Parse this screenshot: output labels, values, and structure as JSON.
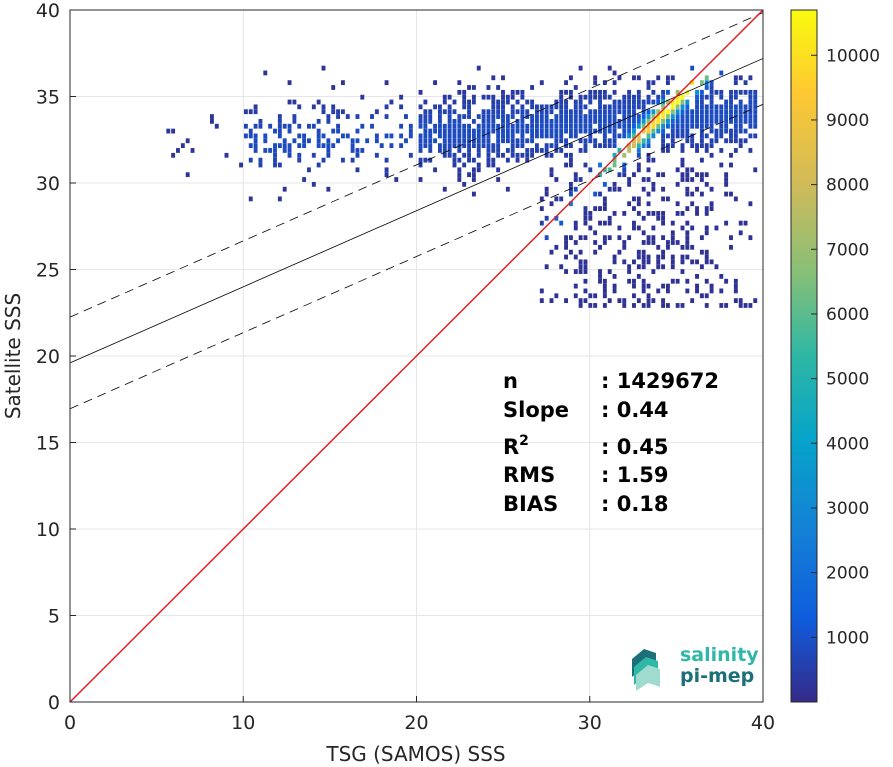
{
  "chart_data": {
    "type": "heatmap",
    "title": "",
    "xlabel": "TSG (SAMOS) SSS",
    "ylabel": "Satellite SSS",
    "xlim": [
      0,
      40
    ],
    "ylim": [
      0,
      40
    ],
    "x_ticks": [
      "0",
      "10",
      "20",
      "30",
      "40"
    ],
    "y_ticks": [
      "0",
      "5",
      "10",
      "15",
      "20",
      "25",
      "30",
      "35",
      "40"
    ],
    "grid": true,
    "colormap": "parula",
    "colorbar": {
      "min": 0,
      "max": 10700,
      "ticks": [
        "1000",
        "2000",
        "3000",
        "4000",
        "5000",
        "6000",
        "7000",
        "8000",
        "9000",
        "10000"
      ]
    },
    "density_peak": {
      "x": 35.5,
      "y": 35.2,
      "count": 10600
    },
    "identity_line": {
      "slope": 1,
      "intercept": 0,
      "color": "#e8141b"
    },
    "fit_line": {
      "slope": 0.44,
      "intercept": 19.6
    },
    "fit_band": {
      "offset": 2.65
    },
    "stats": [
      {
        "key": "n",
        "value": ": 1429672"
      },
      {
        "key": "Slope",
        "value": ": 0.44"
      },
      {
        "key": "R2",
        "value": ": 0.45"
      },
      {
        "key": "RMS",
        "value": ": 1.59"
      },
      {
        "key": "BIAS",
        "value": ": 0.18"
      }
    ]
  },
  "logo": {
    "line1": "salinity",
    "line2": "pi-mep",
    "color1": "#2fb8a8",
    "color2": "#1d6f7a"
  }
}
